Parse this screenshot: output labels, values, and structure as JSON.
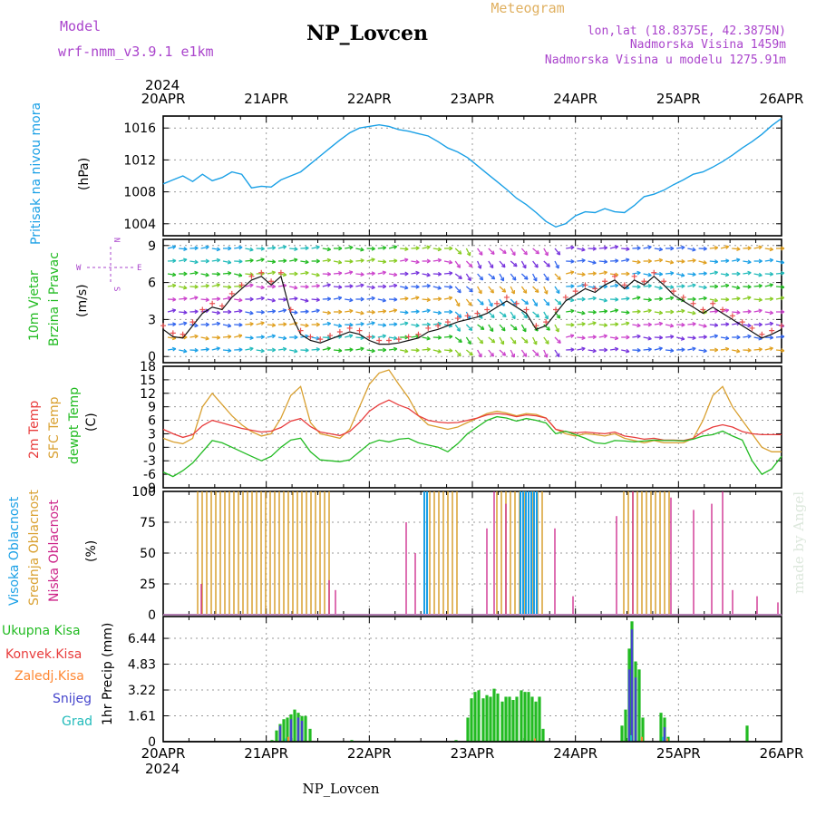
{
  "header": {
    "model_label": "Model",
    "model_name": "wrf-nmm_v3.9.1 e1km",
    "station": "NP_Lovcen",
    "meteogram": "Meteogram",
    "lonlat": "lon,lat (18.8375E, 42.3875N)",
    "elevation": "Nadmorska Visina 1459m",
    "model_elevation": "Nadmorska Visina u modelu 1275.91m",
    "year": "2024",
    "footer_station": "NP_Lovcen",
    "credit": "made by Angel"
  },
  "colors": {
    "pressure": "#1aa0e6",
    "wind_label": "#22bb22",
    "wind_dir_label": "#aa44cc",
    "temp2m": "#e83c3c",
    "sfc": "#d9a030",
    "dew": "#22bb22",
    "high_cloud": "#1aa0e6",
    "mid_cloud": "#d9a030",
    "low_cloud": "#cc2288",
    "total_precip": "#22bb22",
    "conv_precip": "#e83c3c",
    "frozen_precip": "#ff8833",
    "snow": "#4444cc",
    "hail": "#22bbbb"
  },
  "chart_data": [
    {
      "type": "line",
      "panel": "pressure",
      "ylabel": "Pritisak na nivou mora",
      "unit": "(hPa)",
      "x_ticks": [
        "20APR",
        "21APR",
        "22APR",
        "23APR",
        "24APR",
        "25APR",
        "26APR"
      ],
      "yticks": [
        1004,
        1008,
        1012,
        1016
      ],
      "ylim": [
        1002.5,
        1017.5
      ],
      "series": [
        {
          "values": [
            1009,
            1009.5,
            1010,
            1009.3,
            1010.2,
            1009.4,
            1009.8,
            1010.5,
            1010.2,
            1008.5,
            1008.7,
            1008.6,
            1009.5,
            1010,
            1010.5,
            1011.5,
            1012.5,
            1013.5,
            1014.5,
            1015.4,
            1016,
            1016.2,
            1016.4,
            1016.2,
            1015.8,
            1015.6,
            1015.3,
            1015,
            1014.3,
            1013.5,
            1013,
            1012.3,
            1011.3,
            1010.3,
            1009.3,
            1008.3,
            1007.2,
            1006.4,
            1005.4,
            1004.3,
            1003.6,
            1004,
            1005,
            1005.5,
            1005.4,
            1005.9,
            1005.5,
            1005.4,
            1006.3,
            1007.4,
            1007.7,
            1008.2,
            1008.9,
            1009.5,
            1010.2,
            1010.5,
            1011.1,
            1011.8,
            1012.6,
            1013.5,
            1014.3,
            1015.2,
            1016.3,
            1017.2
          ]
        }
      ]
    },
    {
      "type": "line",
      "panel": "wind",
      "ylabel": [
        "10m Vjetar",
        "Brzina i Pravac"
      ],
      "unit": "(m/s)",
      "compass": {
        "north": "N",
        "south": "S",
        "west": "W",
        "east": "E"
      },
      "yticks": [
        0,
        3,
        6,
        9
      ],
      "ylim": [
        -0.5,
        9.5
      ],
      "series": [
        {
          "values": [
            2.2,
            1.6,
            1.5,
            2.5,
            3.5,
            4,
            3.8,
            4.8,
            5.5,
            6.2,
            6.5,
            5.8,
            6.5,
            3.5,
            1.8,
            1.3,
            1.1,
            1.4,
            1.7,
            2,
            1.8,
            1.3,
            1,
            1,
            1.1,
            1.3,
            1.5,
            2,
            2.2,
            2.5,
            2.8,
            3,
            3.2,
            3.5,
            4,
            4.5,
            4,
            3.5,
            2.2,
            2.5,
            3.5,
            4.5,
            5,
            5.5,
            5.2,
            5.8,
            6.2,
            5.5,
            6.2,
            5.8,
            6.5,
            5.8,
            5,
            4.5,
            4,
            3.5,
            4,
            3.5,
            3,
            2.5,
            2,
            1.5,
            1.8,
            2.2
          ]
        }
      ]
    },
    {
      "type": "line",
      "panel": "temperature",
      "ylabels": [
        "2m Temp",
        "SFC Temp",
        "dewpt Temp"
      ],
      "unit": "(C)",
      "yticks": [
        -9,
        -6,
        -3,
        0,
        3,
        6,
        9,
        12,
        15,
        18
      ],
      "ylim": [
        -9,
        18
      ],
      "series": [
        {
          "name": "2m Temp",
          "values": [
            4,
            3,
            2.2,
            2.8,
            4.8,
            6,
            5.4,
            4.8,
            4.2,
            3.8,
            3.4,
            3.6,
            4.4,
            5.8,
            6.4,
            4.6,
            3.4,
            3,
            2.6,
            3.5,
            5.5,
            8,
            9.5,
            10.5,
            9.4,
            8.6,
            7,
            6,
            5.6,
            5.4,
            5.5,
            6,
            6.5,
            7.2,
            7.5,
            7.3,
            6.8,
            7.2,
            7,
            6.5,
            4,
            3.5,
            3.2,
            3.4,
            3.2,
            3,
            3.4,
            2.5,
            2.2,
            1.8,
            2,
            1.6,
            1.6,
            1.5,
            2,
            3.5,
            4.5,
            5,
            4.5,
            3.5,
            3,
            2.8,
            2.8,
            2.8
          ]
        },
        {
          "name": "SFC Temp",
          "values": [
            2,
            1.2,
            0.8,
            2,
            9,
            12,
            9.5,
            7,
            5,
            3.5,
            2.5,
            3,
            6.5,
            11.5,
            13.5,
            5.5,
            3,
            2.5,
            2,
            4,
            9,
            14,
            16.5,
            17.2,
            14,
            11,
            7,
            5,
            4.5,
            4,
            4.5,
            5.5,
            6.5,
            7.5,
            8,
            7.6,
            7,
            7.5,
            7.3,
            6.5,
            4,
            3,
            2.5,
            3,
            2.8,
            2.5,
            3,
            2,
            1.5,
            1,
            1.5,
            1,
            1,
            1,
            2,
            6,
            11.5,
            13.5,
            9,
            6,
            3,
            0,
            -1,
            -1
          ]
        },
        {
          "name": "dewpt Temp",
          "values": [
            -5.5,
            -6.5,
            -5.2,
            -3.5,
            -1,
            1.5,
            1,
            0,
            -1,
            -2,
            -3,
            -2,
            0,
            1.6,
            2,
            -1,
            -2.8,
            -3,
            -3.2,
            -2.8,
            -1,
            0.8,
            1.6,
            1.2,
            1.8,
            2,
            1,
            0.5,
            0,
            -1,
            0.8,
            3,
            4.5,
            6,
            6.8,
            6.5,
            5.8,
            6.4,
            6,
            5.4,
            3,
            3.6,
            2.8,
            2,
            1,
            0.8,
            1.5,
            1.4,
            1.2,
            1.4,
            1.6,
            1.5,
            1.5,
            1.4,
            1.8,
            2.5,
            2.8,
            3.6,
            2.5,
            1.6,
            -3,
            -6,
            -4.8,
            -2
          ]
        }
      ]
    },
    {
      "type": "bar",
      "panel": "cloud",
      "ylabels": [
        "Visoka Oblacnost",
        "Srednja Oblacnost",
        "Niska Oblacnost"
      ],
      "unit": "(%)",
      "yticks": [
        0,
        25,
        50,
        75,
        100
      ],
      "ylim": [
        0,
        100
      ]
    },
    {
      "type": "bar",
      "panel": "precip",
      "ylabels": [
        "Ukupna Kisa",
        "Konvek.Kisa",
        "Zaledj.Kisa",
        "Snijeg",
        "Grad"
      ],
      "unit": "1hr Precip (mm)",
      "yticks": [
        0,
        1.61,
        3.22,
        4.83,
        6.44
      ],
      "ylim": [
        0,
        7.8
      ]
    }
  ]
}
